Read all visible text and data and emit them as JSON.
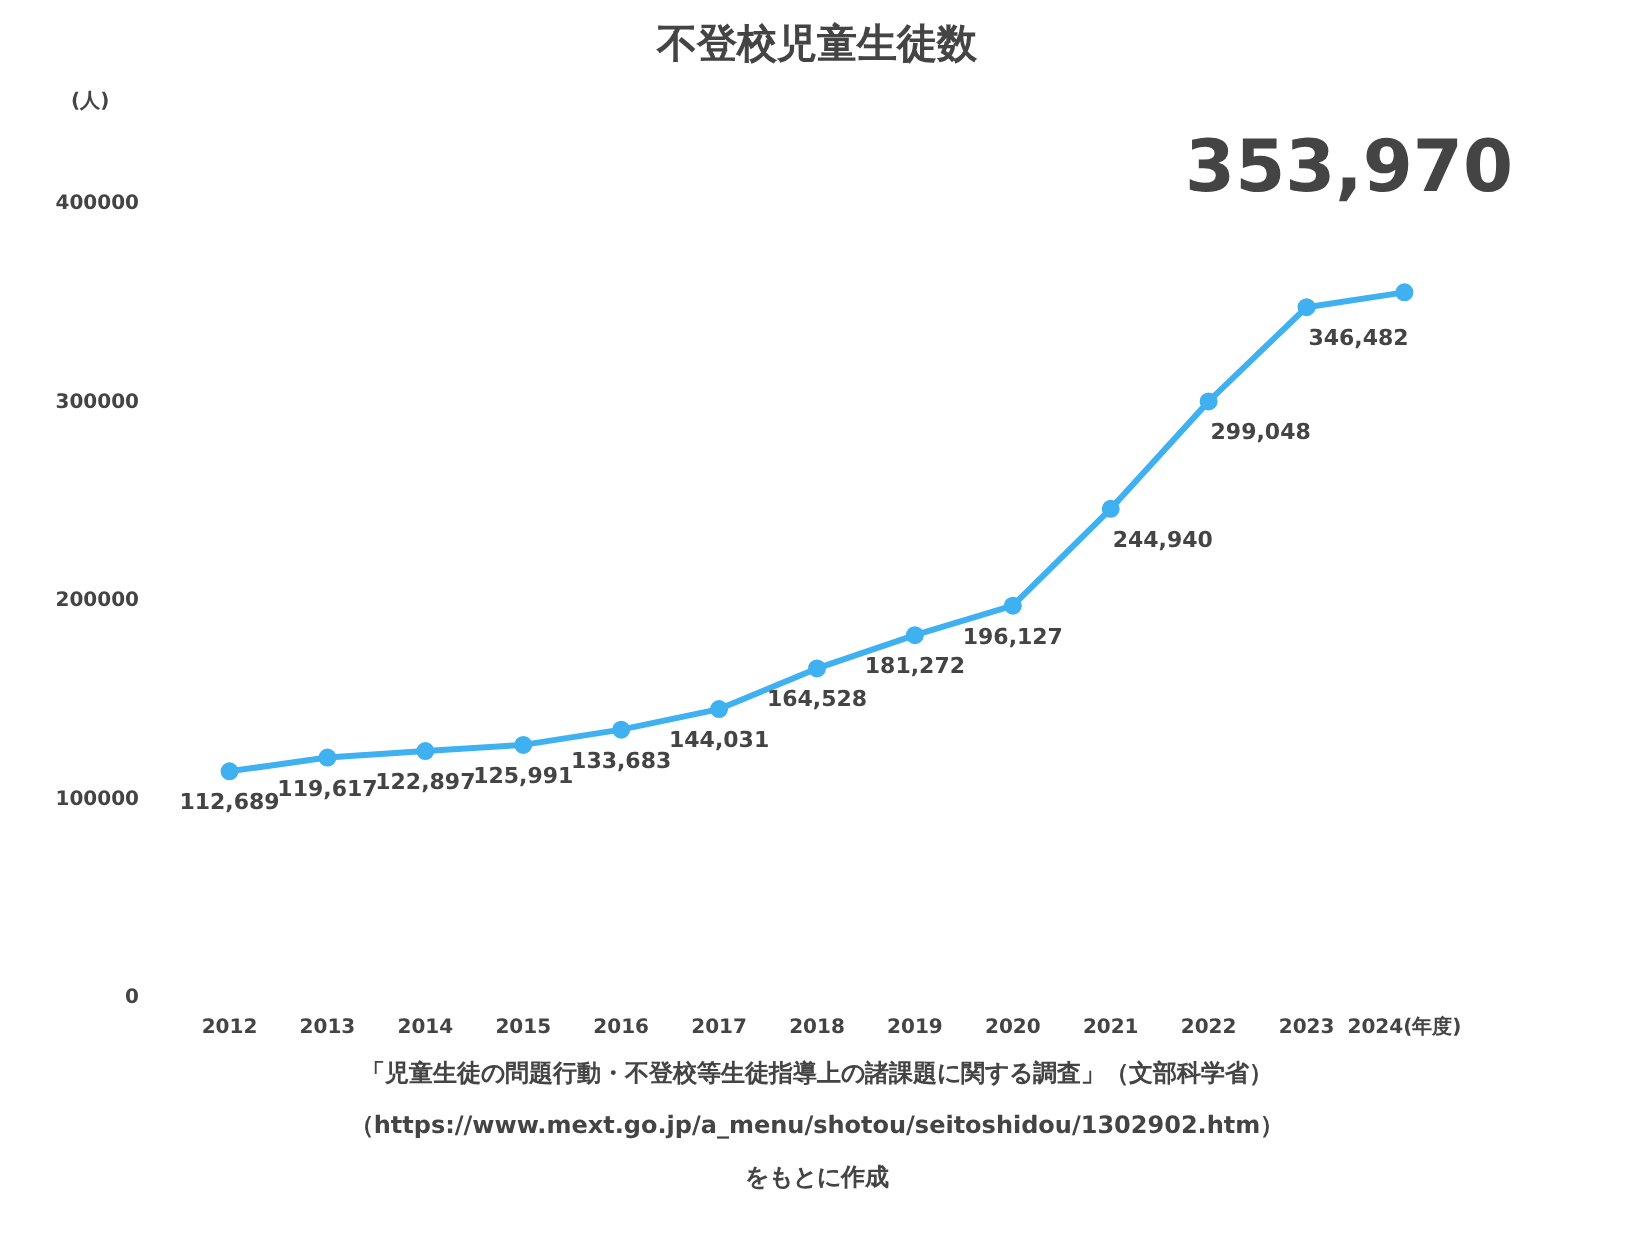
{
  "chart_data": {
    "type": "line",
    "title": "不登校児童生徒数",
    "ylabel": "(人)",
    "categories": [
      "2012",
      "2013",
      "2014",
      "2015",
      "2016",
      "2017",
      "2018",
      "2019",
      "2020",
      "2021",
      "2022",
      "2023",
      "2024(年度)"
    ],
    "series": [
      {
        "color": "#3fb0f0",
        "values": [
          112689,
          119617,
          122897,
          125991,
          133683,
          144031,
          164528,
          181272,
          196127,
          244940,
          299048,
          346482,
          353970
        ],
        "value_labels": [
          "112,689",
          "119,617",
          "122,897",
          "125,991",
          "133,683",
          "144,031",
          "164,528",
          "181,272",
          "196,127",
          "244,940",
          "299,048",
          "346,482",
          null
        ]
      }
    ],
    "ylim": [
      0,
      400000
    ],
    "yticks": [
      0,
      100000,
      200000,
      300000,
      400000
    ],
    "grid": false,
    "marker": "circle",
    "line_style": "solid",
    "annotations": [
      "353,970",
      "「児童生徒の問題行動・不登校等生徒指導上の諸課題に関する調査」（文部科学省）",
      "（https://www.mext.go.jp/a_menu/shotou/seitoshidou/1302902.htm）",
      "をもとに作成"
    ]
  }
}
